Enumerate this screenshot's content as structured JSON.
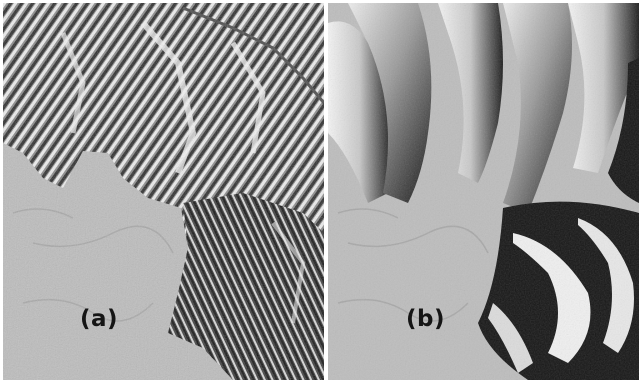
{
  "figure": {
    "panels": [
      {
        "id": "a",
        "label": "(a)"
      },
      {
        "id": "b",
        "label": "(b)"
      }
    ],
    "colors": {
      "plain": "#bdbdbd",
      "shadow": "#151515",
      "highlight": "#f4f4f4",
      "background": "#ffffff"
    }
  }
}
